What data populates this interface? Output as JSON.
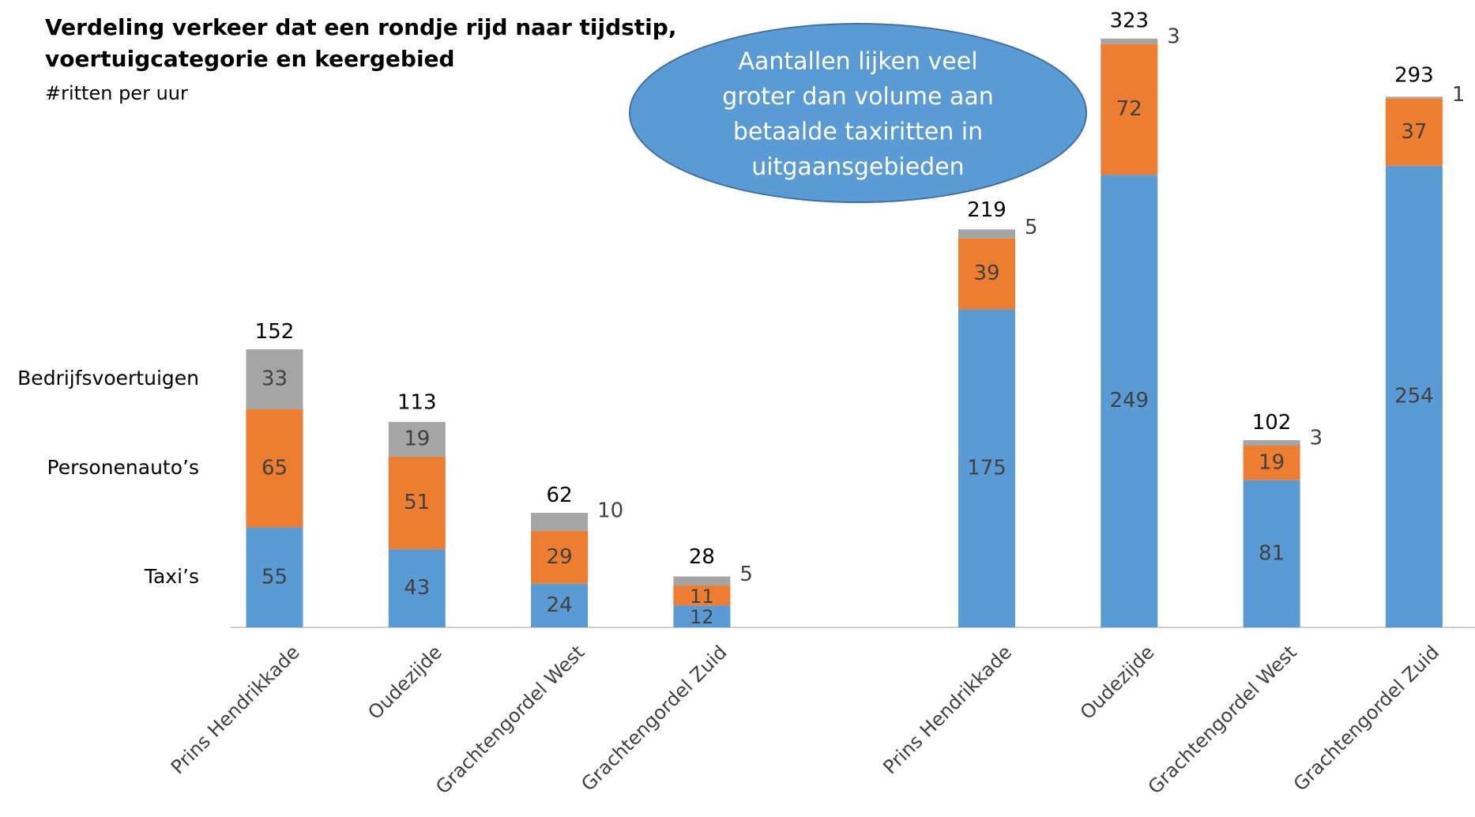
{
  "chart_data": {
    "type": "stacked_bar",
    "title": [
      "Verdeling verkeer dat een rondje rijd naar tijdstip,",
      "voertuigcategorie en keergebied"
    ],
    "subtitle": "#ritten per uur",
    "annotation": [
      "Aantallen lijken veel",
      "groter dan volume aan",
      "betaalde taxiritten in",
      "uitgaansgebieden"
    ],
    "categories": [
      "Prins Hendrikkade",
      "Oudezijde",
      "Grachtengordel West",
      "Grachtengordel Zuid",
      "Prins Hendrikkade",
      "Oudezijde",
      "Grachtengordel West",
      "Grachtengordel Zuid"
    ],
    "series": [
      {
        "name": "Taxi’s",
        "color": "#5b9bd5",
        "values": [
          55,
          43,
          24,
          12,
          175,
          249,
          81,
          254
        ]
      },
      {
        "name": "Personenauto’s",
        "color": "#ed7d31",
        "values": [
          65,
          51,
          29,
          11,
          39,
          72,
          19,
          37
        ]
      },
      {
        "name": "Bedrijfsvoertuigen",
        "color": "#a5a5a5",
        "values": [
          33,
          19,
          10,
          5,
          5,
          3,
          3,
          1
        ]
      }
    ],
    "totals": [
      152,
      113,
      62,
      28,
      219,
      323,
      102,
      293
    ],
    "ylim": [
      0,
      345
    ]
  }
}
